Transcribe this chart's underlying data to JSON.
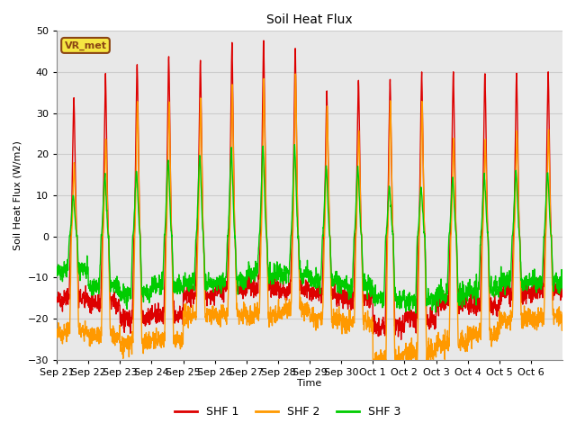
{
  "title": "Soil Heat Flux",
  "ylabel": "Soil Heat Flux (W/m2)",
  "xlabel": "Time",
  "ylim": [
    -30,
    50
  ],
  "plot_bg_color": "#e8e8e8",
  "fig_bg_color": "#ffffff",
  "grid_color": "#cccccc",
  "shf1_color": "#dd0000",
  "shf2_color": "#ff9900",
  "shf3_color": "#00cc00",
  "legend_label1": "SHF 1",
  "legend_label2": "SHF 2",
  "legend_label3": "SHF 3",
  "watermark": "VR_met",
  "xtick_labels": [
    "Sep 21",
    "Sep 22",
    "Sep 23",
    "Sep 24",
    "Sep 25",
    "Sep 26",
    "Sep 27",
    "Sep 28",
    "Sep 29",
    "Sep 30",
    "Oct 1",
    "Oct 2",
    "Oct 3",
    "Oct 4",
    "Oct 5",
    "Oct 6"
  ],
  "n_days": 16,
  "points_per_day": 144
}
